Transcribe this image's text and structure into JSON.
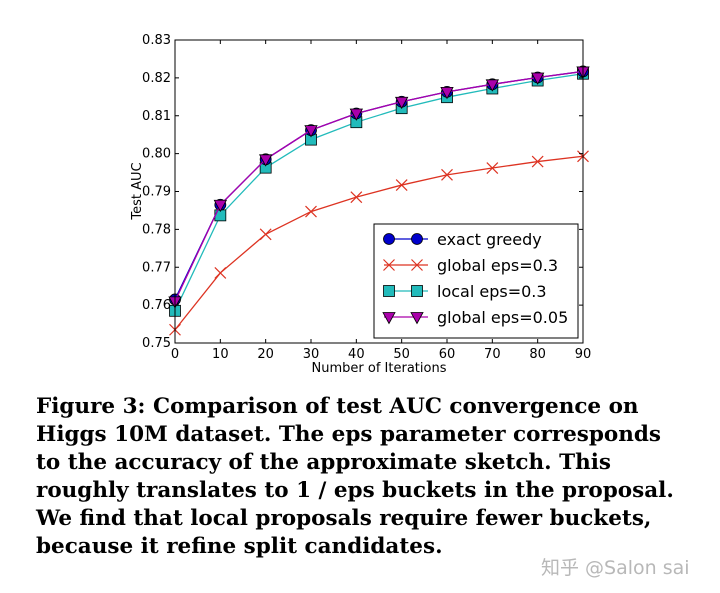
{
  "chart_data": {
    "type": "line",
    "xlabel": "Number of Iterations",
    "ylabel": "Test AUC",
    "xlim": [
      0,
      90
    ],
    "ylim": [
      0.75,
      0.83
    ],
    "xticks": [
      "0",
      "10",
      "20",
      "30",
      "40",
      "50",
      "60",
      "70",
      "80",
      "90"
    ],
    "yticks": [
      "0.75",
      "0.76",
      "0.77",
      "0.78",
      "0.79",
      "0.80",
      "0.81",
      "0.82",
      "0.83"
    ],
    "grid": false,
    "legend_position": "lower-right",
    "x": [
      0,
      10,
      20,
      30,
      40,
      50,
      60,
      70,
      80,
      90
    ],
    "series": [
      {
        "name": "exact greedy",
        "color": "#0000cc",
        "marker": "circle",
        "values": [
          0.7615,
          0.7865,
          0.7985,
          0.8062,
          0.8106,
          0.8137,
          0.8163,
          0.8183,
          0.8201,
          0.8217
        ]
      },
      {
        "name": "global eps=0.3",
        "color": "#dd3322",
        "marker": "x",
        "values": [
          0.7535,
          0.7685,
          0.7787,
          0.7847,
          0.7885,
          0.7917,
          0.7944,
          0.7962,
          0.7979,
          0.7993
        ]
      },
      {
        "name": "local eps=0.3",
        "color": "#22bbbb",
        "marker": "square",
        "values": [
          0.7585,
          0.7837,
          0.7963,
          0.8037,
          0.8083,
          0.812,
          0.8149,
          0.8172,
          0.8193,
          0.8211
        ]
      },
      {
        "name": "global eps=0.05",
        "color": "#aa00aa",
        "marker": "triangle-down",
        "values": [
          0.761,
          0.7865,
          0.7985,
          0.8062,
          0.8106,
          0.8137,
          0.8163,
          0.8183,
          0.8201,
          0.8217
        ]
      }
    ]
  },
  "caption": {
    "lines": [
      "Figure 3: Comparison of test AUC convergence on",
      "Higgs 10M dataset. The eps parameter corresponds",
      "to the accuracy of the approximate sketch.  This",
      "roughly translates to 1 / eps buckets in the proposal.",
      "We find that local proposals require fewer buckets,",
      "because it refine split candidates."
    ]
  },
  "watermark": "知乎 @Salon sai"
}
